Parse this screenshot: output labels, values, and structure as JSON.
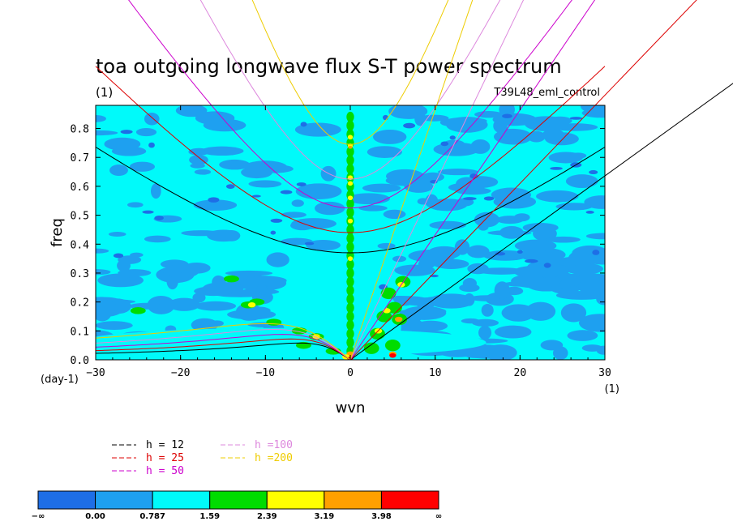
{
  "chart_data": {
    "type": "heatmap",
    "title": "toa outgoing longwave flux S-T power spectrum",
    "subtitle_left": "(1)",
    "subtitle_right": "T39L48_eml_control",
    "xlabel": "wvn",
    "ylabel": "freq",
    "x_unit_label": "(1)",
    "y_unit_label": "(day-1)",
    "xlim": [
      -30,
      30
    ],
    "ylim": [
      0,
      0.88
    ],
    "x_ticks": [
      -30,
      -20,
      -10,
      0,
      10,
      20,
      30
    ],
    "x_tick_labels": [
      "−30",
      "−20",
      "−10",
      "0",
      "10",
      "20",
      "30"
    ],
    "y_ticks": [
      0.0,
      0.1,
      0.2,
      0.3,
      0.4,
      0.5,
      0.6,
      0.7,
      0.8
    ],
    "y_tick_labels": [
      "0.0",
      "0.1",
      "0.2",
      "0.3",
      "0.4",
      "0.5",
      "0.6",
      "0.7",
      "0.8"
    ],
    "contour_levels": [
      {
        "color": "#1e6ee6"
      },
      {
        "color": "#1ea0f0"
      },
      {
        "color": "#00fafa"
      },
      {
        "color": "#00dc00"
      },
      {
        "color": "#ffff00"
      },
      {
        "color": "#ffa000"
      },
      {
        "color": "#ff0000"
      }
    ],
    "colorbar_labels": [
      "−∞",
      "0.00",
      "0.787",
      "1.59",
      "2.39",
      "3.19",
      "3.98",
      "∞"
    ],
    "dispersion_legend": [
      {
        "label": "h = 12",
        "h": 12,
        "color": "#000000"
      },
      {
        "label": "h = 25",
        "h": 25,
        "color": "#dd0000"
      },
      {
        "label": "h = 50",
        "h": 50,
        "color": "#cc00cc"
      },
      {
        "label": "h =100",
        "h": 100,
        "color": "#dd88dd"
      },
      {
        "label": "h =200",
        "h": 200,
        "color": "#eecc00"
      }
    ],
    "legend_position": "bottom-left",
    "dispersion_curves": {
      "kelvin_speed_unit": "wvn per day-1 scaled",
      "kelvin_c": [
        0.0212,
        0.0305,
        0.0432,
        0.061,
        0.0864
      ],
      "ig_minimum_freq": [
        0.37,
        0.44,
        0.525,
        0.625,
        0.745
      ],
      "er_peak_freq": [
        0.058,
        0.072,
        0.088,
        0.105,
        0.125
      ],
      "er_peak_wvn": [
        -6,
        -7,
        -8,
        -9,
        -10
      ]
    }
  }
}
